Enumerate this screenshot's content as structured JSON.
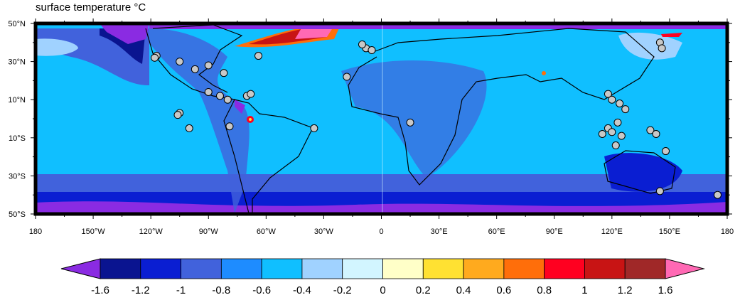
{
  "title": "surface temperature °C",
  "x_ticks": [
    {
      "lon": -180,
      "label": "180"
    },
    {
      "lon": -150,
      "label": "150°W"
    },
    {
      "lon": -120,
      "label": "120°W"
    },
    {
      "lon": -90,
      "label": "90°W"
    },
    {
      "lon": -60,
      "label": "60°W"
    },
    {
      "lon": -30,
      "label": "30°W"
    },
    {
      "lon": 0,
      "label": "0"
    },
    {
      "lon": 30,
      "label": "30°E"
    },
    {
      "lon": 60,
      "label": "60°E"
    },
    {
      "lon": 90,
      "label": "90°E"
    },
    {
      "lon": 120,
      "label": "120°E"
    },
    {
      "lon": 150,
      "label": "150°E"
    },
    {
      "lon": 180,
      "label": "180"
    }
  ],
  "y_ticks": [
    {
      "lat": 50,
      "label": "50°N"
    },
    {
      "lat": 30,
      "label": "30°N"
    },
    {
      "lat": 10,
      "label": "10°N"
    },
    {
      "lat": -10,
      "label": "10°S"
    },
    {
      "lat": -30,
      "label": "30°S"
    },
    {
      "lat": -50,
      "label": "50°S"
    }
  ],
  "colorbar": {
    "labels": [
      "-1.6",
      "-1.2",
      "-1",
      "-0.8",
      "-0.6",
      "-0.4",
      "-0.2",
      "0",
      "0.2",
      "0.4",
      "0.6",
      "0.8",
      "1",
      "1.2",
      "1.6"
    ],
    "low_color": "#8a2be2",
    "high_color": "#ff69b4",
    "colors": [
      "#0a1490",
      "#0a1ed2",
      "#4162dc",
      "#1e8cff",
      "#10bfff",
      "#a0d2ff",
      "#d2f5ff",
      "#ffffc8",
      "#ffe132",
      "#ffaa1e",
      "#ff6e0a",
      "#ff0020",
      "#c81414",
      "#a02828"
    ]
  },
  "stations": [
    [
      -117,
      33
    ],
    [
      -118,
      32
    ],
    [
      -105,
      30
    ],
    [
      -97,
      26
    ],
    [
      -90,
      28
    ],
    [
      -82,
      24
    ],
    [
      -80,
      10
    ],
    [
      -84,
      12
    ],
    [
      -90,
      14
    ],
    [
      -70,
      12
    ],
    [
      -68,
      13
    ],
    [
      -105,
      3
    ],
    [
      -106,
      2
    ],
    [
      -100,
      -5
    ],
    [
      -79,
      -4
    ],
    [
      -35,
      -5
    ],
    [
      -8,
      37
    ],
    [
      -5,
      36
    ],
    [
      -10,
      39
    ],
    [
      -18,
      22
    ],
    [
      15,
      -2
    ],
    [
      118,
      13
    ],
    [
      120,
      10
    ],
    [
      124,
      8
    ],
    [
      127,
      5
    ],
    [
      118,
      -5
    ],
    [
      115,
      -8
    ],
    [
      120,
      -7
    ],
    [
      125,
      -9
    ],
    [
      123,
      -2
    ],
    [
      122,
      -14
    ],
    [
      140,
      -6
    ],
    [
      143,
      -8
    ],
    [
      148,
      -17
    ],
    [
      145,
      -38
    ],
    [
      175,
      -40
    ],
    [
      145,
      40
    ],
    [
      146,
      37
    ],
    [
      -64,
      33
    ]
  ]
}
